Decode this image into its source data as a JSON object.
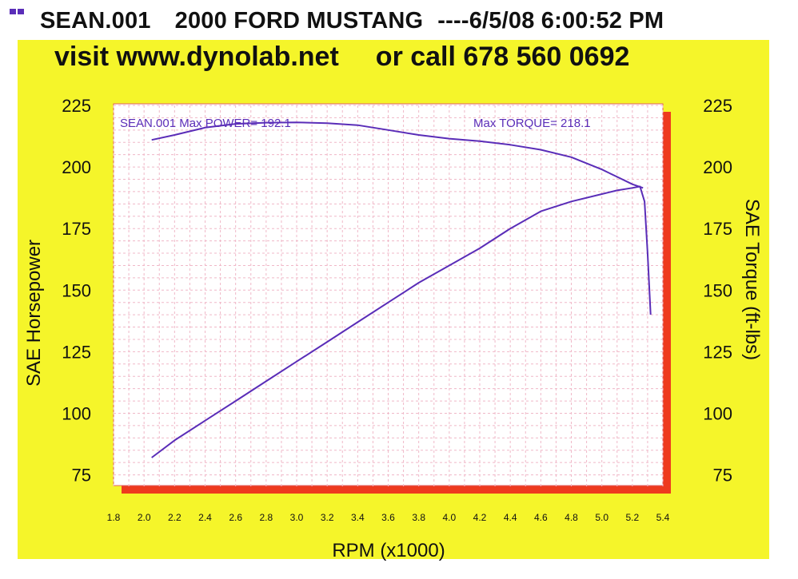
{
  "header": {
    "run": "SEAN.001",
    "vehicle": "2000 FORD MUSTANG",
    "timestamp": "----6/5/08 6:00:52 PM"
  },
  "promo": {
    "website": "visit www.dynolab.net",
    "phone": "or call 678 560 0692"
  },
  "colors": {
    "background": "#f5f52a",
    "plot": "#ffffff",
    "grid": "#f0b8c8",
    "line": "#5a2db8",
    "frame": "#ee3a1e"
  },
  "chart_data": {
    "type": "line",
    "xlabel": "RPM (x1000)",
    "ylabel_left": "SAE Horsepower",
    "ylabel_right": "SAE Torque (ft-lbs)",
    "xlim": [
      1.8,
      5.4
    ],
    "ylim": [
      70,
      225
    ],
    "x_ticks": [
      "1.8",
      "2.0",
      "2.2",
      "2.4",
      "2.6",
      "2.8",
      "3.0",
      "3.2",
      "3.4",
      "3.6",
      "3.8",
      "4.0",
      "4.2",
      "4.4",
      "4.6",
      "4.8",
      "5.0",
      "5.2",
      "5.4"
    ],
    "y_ticks_left": [
      "225",
      "200",
      "175",
      "150",
      "125",
      "100",
      "75"
    ],
    "y_ticks_right": [
      "225",
      "200",
      "175",
      "150",
      "125",
      "100",
      "75"
    ],
    "grid": true,
    "annotations": {
      "left": "SEAN.001  Max POWER= 192.1",
      "right": "Max TORQUE= 218.1"
    },
    "series": [
      {
        "x": [
          2.05,
          2.2,
          2.4,
          2.6,
          2.8,
          3.0,
          3.2,
          3.4,
          3.6,
          3.8,
          4.0,
          4.2,
          4.4,
          4.6,
          4.8,
          5.0,
          5.1,
          5.2,
          5.25,
          5.28,
          5.3,
          5.32
        ],
        "y": [
          82,
          89,
          97,
          105,
          113,
          121,
          129,
          137,
          145,
          153,
          160,
          167,
          175,
          182,
          186,
          189,
          190.5,
          191.5,
          192.1,
          186,
          165,
          140
        ]
      },
      {
        "x": [
          2.05,
          2.2,
          2.4,
          2.6,
          2.8,
          3.0,
          3.2,
          3.4,
          3.6,
          3.8,
          4.0,
          4.2,
          4.4,
          4.6,
          4.8,
          5.0,
          5.1,
          5.2,
          5.27
        ],
        "y": [
          211,
          213,
          216,
          217.5,
          218,
          218.1,
          217.8,
          217,
          215,
          213,
          211.5,
          210.5,
          209,
          207,
          204,
          199,
          196,
          193,
          191.5
        ]
      }
    ]
  }
}
